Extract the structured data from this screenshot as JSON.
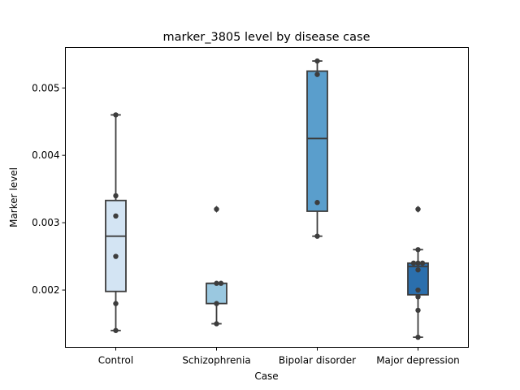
{
  "chart_data": {
    "type": "box",
    "title": "marker_3805 level by disease case",
    "xlabel": "Case",
    "ylabel": "Marker level",
    "ylim": [
      0.00115,
      0.0056
    ],
    "yticks": [
      "0.002",
      "0.003",
      "0.004",
      "0.005"
    ],
    "ytick_values": [
      0.002,
      0.003,
      0.004,
      0.005
    ],
    "grid": false,
    "categories": [
      "Control",
      "Schizophrenia",
      "Bipolar disorder",
      "Major depression"
    ],
    "boxes": [
      {
        "category": "Control",
        "color": "#d3e4f3",
        "whisker_low": 0.0014,
        "q1": 0.00198,
        "median": 0.0028,
        "q3": 0.00333,
        "whisker_high": 0.0046,
        "outliers": [],
        "points": [
          0.0014,
          0.0018,
          0.0025,
          0.0031,
          0.0034,
          0.0046
        ]
      },
      {
        "category": "Schizophrenia",
        "color": "#9ac8e0",
        "whisker_low": 0.0015,
        "q1": 0.0018,
        "median": 0.0021,
        "q3": 0.0021,
        "whisker_high": 0.0021,
        "outliers": [
          0.0032
        ],
        "points": [
          0.0015,
          0.0018,
          0.0021,
          0.0021,
          0.0032
        ]
      },
      {
        "category": "Bipolar disorder",
        "color": "#5a9ecc",
        "whisker_low": 0.0028,
        "q1": 0.00317,
        "median": 0.00425,
        "q3": 0.00525,
        "whisker_high": 0.0054,
        "outliers": [],
        "points": [
          0.0028,
          0.0033,
          0.0052,
          0.0054
        ]
      },
      {
        "category": "Major depression",
        "color": "#2b6fad",
        "whisker_low": 0.0013,
        "q1": 0.00193,
        "median": 0.00235,
        "q3": 0.0024,
        "whisker_high": 0.0026,
        "outliers": [
          0.0032
        ],
        "points": [
          0.0013,
          0.0017,
          0.0019,
          0.002,
          0.0023,
          0.0024,
          0.0024,
          0.0024,
          0.0026,
          0.0032
        ]
      }
    ]
  }
}
